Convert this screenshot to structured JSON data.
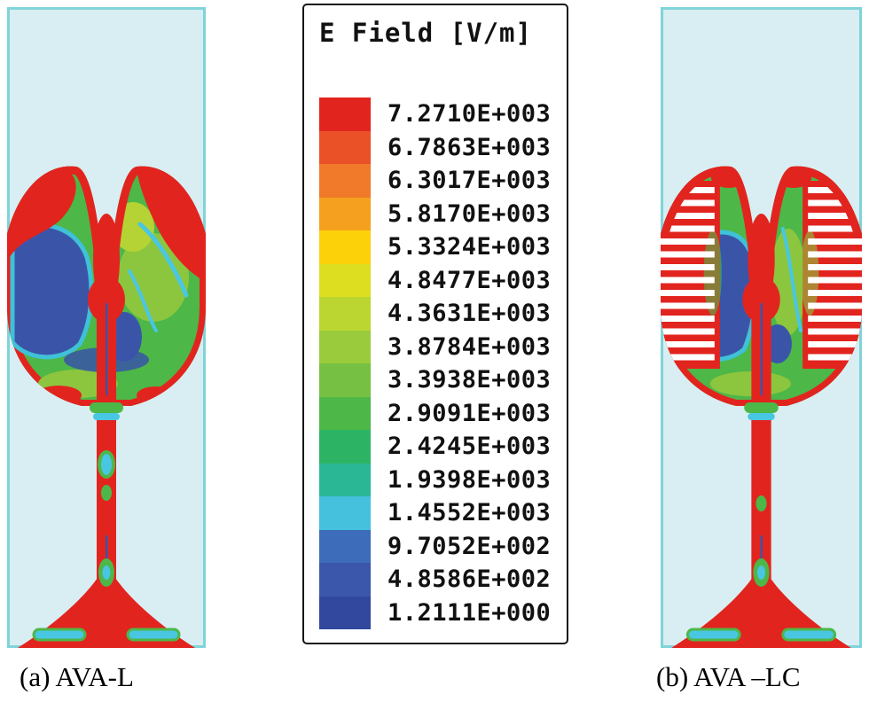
{
  "chart_data": {
    "type": "heatmap",
    "title": "E Field [V/m]",
    "unit": "V/m",
    "legend_position": "center-column",
    "panels": [
      {
        "label": "(a) AVA-L"
      },
      {
        "label": "(b) AVA –LC"
      }
    ],
    "colorbar": {
      "labels": [
        "7.2710E+003",
        "6.7863E+003",
        "6.3017E+003",
        "5.8170E+003",
        "5.3324E+003",
        "4.8477E+003",
        "4.3631E+003",
        "3.8784E+003",
        "3.3938E+003",
        "2.9091E+003",
        "2.4245E+003",
        "1.9398E+003",
        "1.4552E+003",
        "9.7052E+002",
        "4.8586E+002",
        "1.2111E+000"
      ],
      "values": [
        7271.0,
        6786.3,
        6301.7,
        5817.0,
        5332.4,
        4847.7,
        4363.1,
        3878.4,
        3393.8,
        2909.1,
        2424.5,
        1939.8,
        1455.2,
        970.52,
        485.86,
        1.2111
      ],
      "colors": [
        "#e2241f",
        "#ea5127",
        "#f0792a",
        "#f6a01f",
        "#fdd109",
        "#dede20",
        "#bcd631",
        "#9acb3c",
        "#76c043",
        "#4db748",
        "#2cb464",
        "#2ab795",
        "#45c0dd",
        "#3c6cba",
        "#3a57ab",
        "#32479e"
      ]
    },
    "style": {
      "panel_background": "#d8eef2",
      "panel_border": "#7fd4da",
      "field_high_color": "#e2241f",
      "field_low_color": "#32479e"
    }
  }
}
